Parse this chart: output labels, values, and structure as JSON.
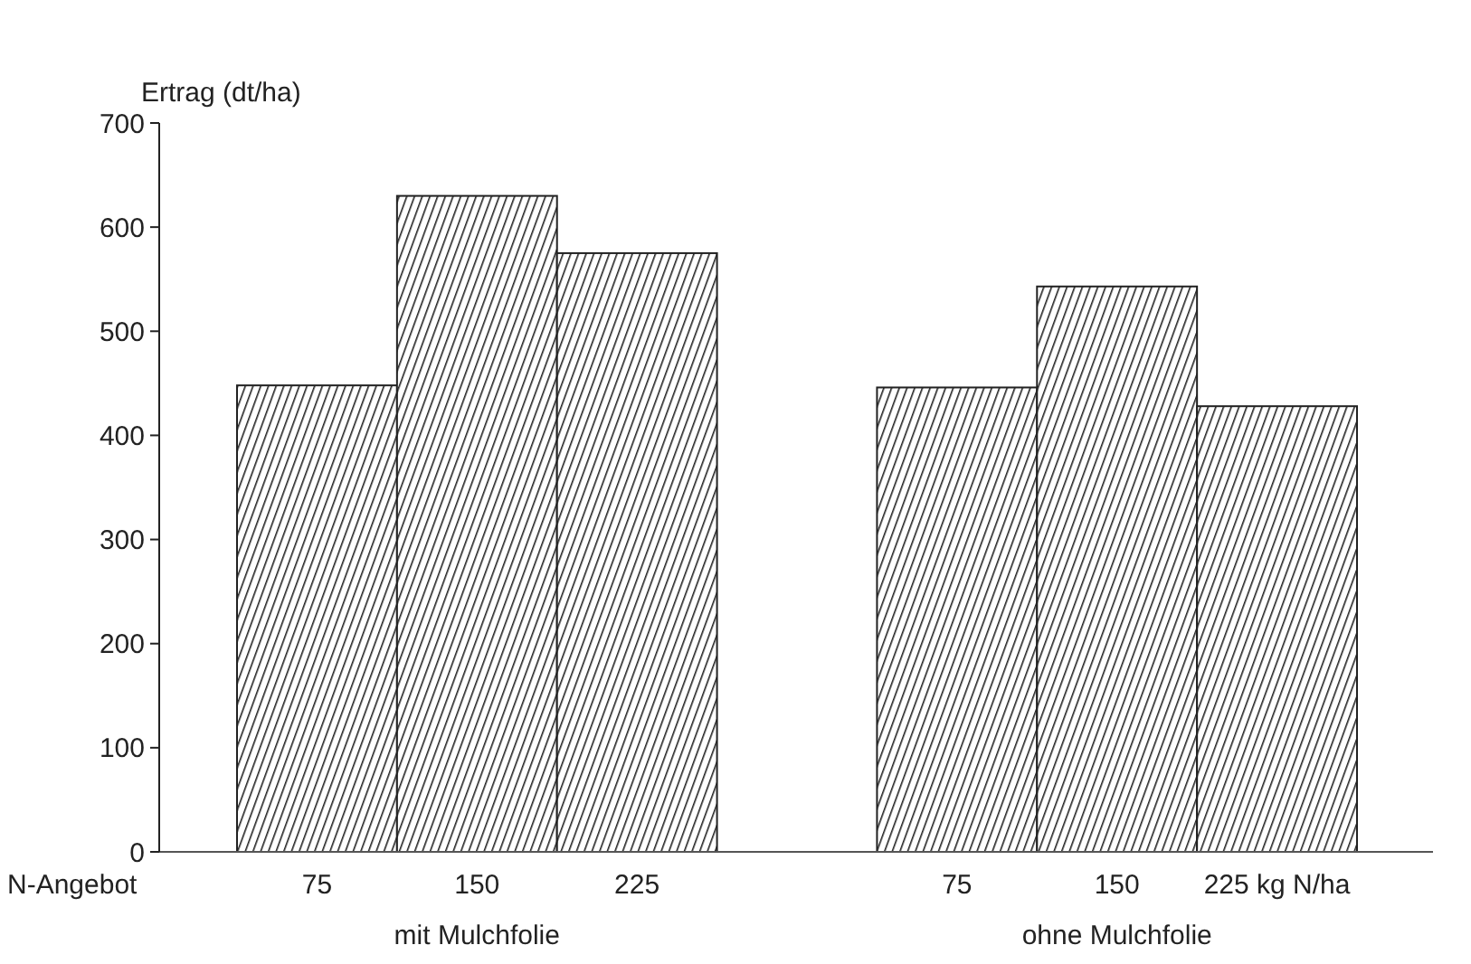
{
  "chart_data": {
    "type": "bar",
    "ylabel": "Ertrag (dt/ha)",
    "xlabel": "N-Angebot",
    "categories": [
      "75",
      "150",
      "225",
      null,
      "75",
      "150",
      "225 kg N/ha"
    ],
    "values": [
      448,
      630,
      575,
      null,
      446,
      543,
      428
    ],
    "color": "#222222",
    "ylim": [
      0,
      700
    ],
    "yticks": [
      0,
      100,
      200,
      300,
      400,
      500,
      600,
      700
    ],
    "annotations": [
      "mit Mulchfolie",
      "ohne Mulchfolie"
    ]
  }
}
